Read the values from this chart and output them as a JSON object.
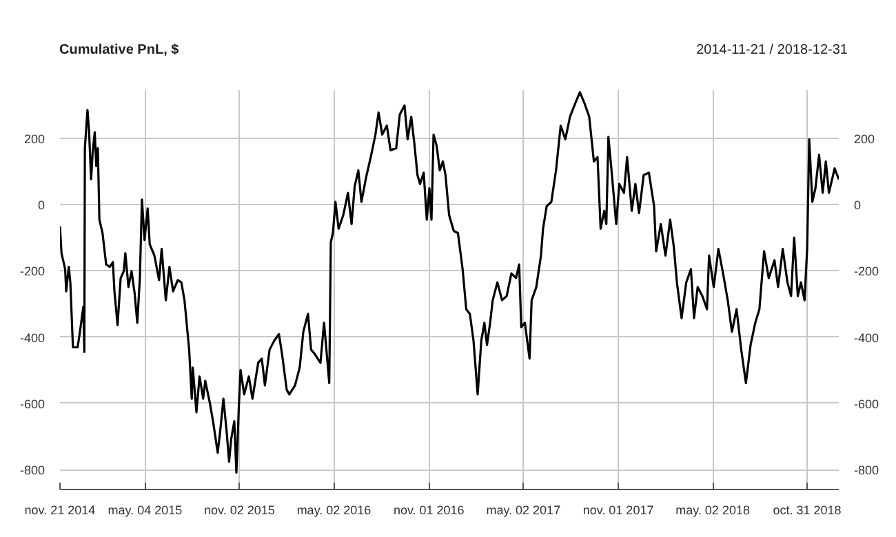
{
  "chart_data": {
    "type": "line",
    "title": "Cumulative PnL, $",
    "subtitle": "2014-11-21 / 2018-12-31",
    "x": [
      "2014-11-21",
      "2014-11-24",
      "2014-12-01",
      "2014-12-03",
      "2014-12-08",
      "2014-12-11",
      "2014-12-16",
      "2014-12-25",
      "2014-12-29",
      "2015-01-05",
      "2015-01-07",
      "2015-01-08",
      "2015-01-13",
      "2015-01-16",
      "2015-01-20",
      "2015-01-23",
      "2015-01-27",
      "2015-01-30",
      "2015-02-02",
      "2015-02-05",
      "2015-02-11",
      "2015-02-18",
      "2015-02-25",
      "2015-03-03",
      "2015-03-06",
      "2015-03-12",
      "2015-03-18",
      "2015-03-24",
      "2015-03-27",
      "2015-04-02",
      "2015-04-08",
      "2015-04-14",
      "2015-04-19",
      "2015-04-24",
      "2015-04-28",
      "2015-05-03",
      "2015-05-09",
      "2015-05-13",
      "2015-05-22",
      "2015-05-31",
      "2015-06-05",
      "2015-06-13",
      "2015-06-20",
      "2015-06-27",
      "2015-07-06",
      "2015-07-13",
      "2015-07-19",
      "2015-07-28",
      "2015-08-02",
      "2015-08-04",
      "2015-08-11",
      "2015-08-17",
      "2015-08-24",
      "2015-08-28",
      "2015-09-06",
      "2015-09-12",
      "2015-09-21",
      "2015-09-26",
      "2015-10-02",
      "2015-10-08",
      "2015-10-13",
      "2015-10-17",
      "2015-10-23",
      "2015-10-27",
      "2015-11-01",
      "2015-11-04",
      "2015-11-11",
      "2015-11-20",
      "2015-11-27",
      "2015-12-08",
      "2015-12-15",
      "2015-12-21",
      "2015-12-30",
      "2016-01-08",
      "2016-01-17",
      "2016-01-23",
      "2016-02-01",
      "2016-02-06",
      "2016-02-17",
      "2016-02-26",
      "2016-03-04",
      "2016-03-13",
      "2016-03-19",
      "2016-03-26",
      "2016-04-06",
      "2016-04-13",
      "2016-04-19",
      "2016-04-23",
      "2016-04-26",
      "2016-04-30",
      "2016-05-05",
      "2016-05-11",
      "2016-05-20",
      "2016-05-29",
      "2016-06-05",
      "2016-06-11",
      "2016-06-18",
      "2016-06-24",
      "2016-07-03",
      "2016-07-12",
      "2016-07-21",
      "2016-07-27",
      "2016-08-03",
      "2016-08-12",
      "2016-08-19",
      "2016-08-30",
      "2016-09-06",
      "2016-09-15",
      "2016-09-21",
      "2016-09-28",
      "2016-10-04",
      "2016-10-10",
      "2016-10-15",
      "2016-10-22",
      "2016-10-28",
      "2016-11-02",
      "2016-11-06",
      "2016-11-10",
      "2016-11-16",
      "2016-11-22",
      "2016-11-28",
      "2016-12-03",
      "2016-12-10",
      "2016-12-19",
      "2016-12-27",
      "2017-01-05",
      "2017-01-12",
      "2017-01-19",
      "2017-01-26",
      "2017-02-03",
      "2017-02-10",
      "2017-02-16",
      "2017-02-21",
      "2017-02-27",
      "2017-03-04",
      "2017-03-13",
      "2017-03-22",
      "2017-03-31",
      "2017-04-09",
      "2017-04-18",
      "2017-04-24",
      "2017-04-28",
      "2017-05-05",
      "2017-05-14",
      "2017-05-18",
      "2017-05-27",
      "2017-06-05",
      "2017-06-09",
      "2017-06-16",
      "2017-06-25",
      "2017-07-04",
      "2017-07-13",
      "2017-07-22",
      "2017-07-31",
      "2017-08-10",
      "2017-08-19",
      "2017-08-28",
      "2017-09-06",
      "2017-09-15",
      "2017-09-22",
      "2017-09-28",
      "2017-10-05",
      "2017-10-09",
      "2017-10-13",
      "2017-10-19",
      "2017-10-28",
      "2017-11-03",
      "2017-11-12",
      "2017-11-18",
      "2017-11-27",
      "2017-12-04",
      "2017-12-11",
      "2017-12-20",
      "2017-12-30",
      "2018-01-09",
      "2018-01-13",
      "2018-01-22",
      "2018-01-31",
      "2018-02-09",
      "2018-02-16",
      "2018-02-22",
      "2018-03-03",
      "2018-03-12",
      "2018-03-21",
      "2018-03-27",
      "2018-04-03",
      "2018-04-12",
      "2018-04-21",
      "2018-04-25",
      "2018-05-04",
      "2018-05-13",
      "2018-05-22",
      "2018-05-31",
      "2018-06-08",
      "2018-06-17",
      "2018-06-26",
      "2018-07-05",
      "2018-07-14",
      "2018-07-23",
      "2018-07-31",
      "2018-08-09",
      "2018-08-18",
      "2018-08-29",
      "2018-09-05",
      "2018-09-14",
      "2018-09-23",
      "2018-09-30",
      "2018-10-06",
      "2018-10-13",
      "2018-10-19",
      "2018-10-26",
      "2018-10-31",
      "2018-11-04",
      "2018-11-10",
      "2018-11-16",
      "2018-11-23",
      "2018-11-30",
      "2018-12-06",
      "2018-12-12",
      "2018-12-23",
      "2018-12-31"
    ],
    "series": [
      {
        "color": "#000000",
        "values": [
          -66,
          -147,
          -195,
          -262,
          -188,
          -235,
          -431,
          -431,
          -390,
          -309,
          -445,
          170,
          285,
          224,
          76,
          157,
          218,
          116,
          170,
          -46,
          -86,
          -181,
          -188,
          -174,
          -262,
          -364,
          -222,
          -201,
          -147,
          -249,
          -201,
          -269,
          -357,
          -222,
          15,
          -107,
          -12,
          -120,
          -154,
          -228,
          -134,
          -289,
          -188,
          -262,
          -228,
          -235,
          -289,
          -438,
          -586,
          -492,
          -627,
          -519,
          -586,
          -532,
          -600,
          -654,
          -749,
          -681,
          -586,
          -681,
          -776,
          -708,
          -654,
          -809,
          -600,
          -499,
          -573,
          -519,
          -586,
          -478,
          -465,
          -546,
          -438,
          -411,
          -391,
          -451,
          -559,
          -573,
          -546,
          -492,
          -384,
          -330,
          -438,
          -451,
          -478,
          -357,
          -465,
          -539,
          -114,
          -86,
          8,
          -73,
          -32,
          35,
          -59,
          55,
          103,
          8,
          82,
          143,
          211,
          278,
          211,
          238,
          164,
          170,
          272,
          299,
          197,
          265,
          184,
          89,
          62,
          96,
          -46,
          49,
          -46,
          211,
          177,
          103,
          130,
          89,
          -32,
          -80,
          -86,
          -195,
          -316,
          -330,
          -411,
          -573,
          -411,
          -357,
          -424,
          -357,
          -289,
          -235,
          -289,
          -276,
          -208,
          -222,
          -181,
          -370,
          -357,
          -465,
          -289,
          -249,
          -154,
          -73,
          -5,
          8,
          103,
          238,
          197,
          265,
          305,
          339,
          305,
          265,
          130,
          143,
          -73,
          -19,
          -59,
          204,
          103,
          -59,
          62,
          35,
          143,
          -19,
          62,
          -26,
          89,
          96,
          -5,
          -141,
          -59,
          -154,
          -46,
          -127,
          -235,
          -343,
          -235,
          -195,
          -343,
          -249,
          -276,
          -316,
          -154,
          -249,
          -134,
          -208,
          -289,
          -384,
          -316,
          -438,
          -539,
          -424,
          -357,
          -316,
          -141,
          -222,
          -168,
          -249,
          -134,
          -235,
          -276,
          -100,
          -276,
          -235,
          -289,
          -134,
          197,
          8,
          49,
          150,
          35,
          130,
          35,
          109,
          76
        ]
      }
    ],
    "xlim": [
      "2014-11-21",
      "2018-12-31"
    ],
    "xticks": [
      {
        "value": "2014-11-21",
        "label": "nov. 21 2014"
      },
      {
        "value": "2015-05-04",
        "label": "may. 04 2015"
      },
      {
        "value": "2015-11-02",
        "label": "nov. 02 2015"
      },
      {
        "value": "2016-05-02",
        "label": "may. 02 2016"
      },
      {
        "value": "2016-11-01",
        "label": "nov. 01 2016"
      },
      {
        "value": "2017-05-02",
        "label": "may. 02 2017"
      },
      {
        "value": "2017-11-01",
        "label": "nov. 01 2017"
      },
      {
        "value": "2018-05-02",
        "label": "may. 02 2018"
      },
      {
        "value": "2018-10-31",
        "label": "oct. 31 2018"
      }
    ],
    "ylim": [
      -860,
      345
    ],
    "yticks": [
      -800,
      -600,
      -400,
      -200,
      0,
      200
    ],
    "y2lim": [
      -860,
      345
    ],
    "y2ticks": [
      -800,
      -600,
      -400,
      -200,
      0,
      200
    ],
    "grid": true,
    "line_style": "solid",
    "marker": "none"
  }
}
